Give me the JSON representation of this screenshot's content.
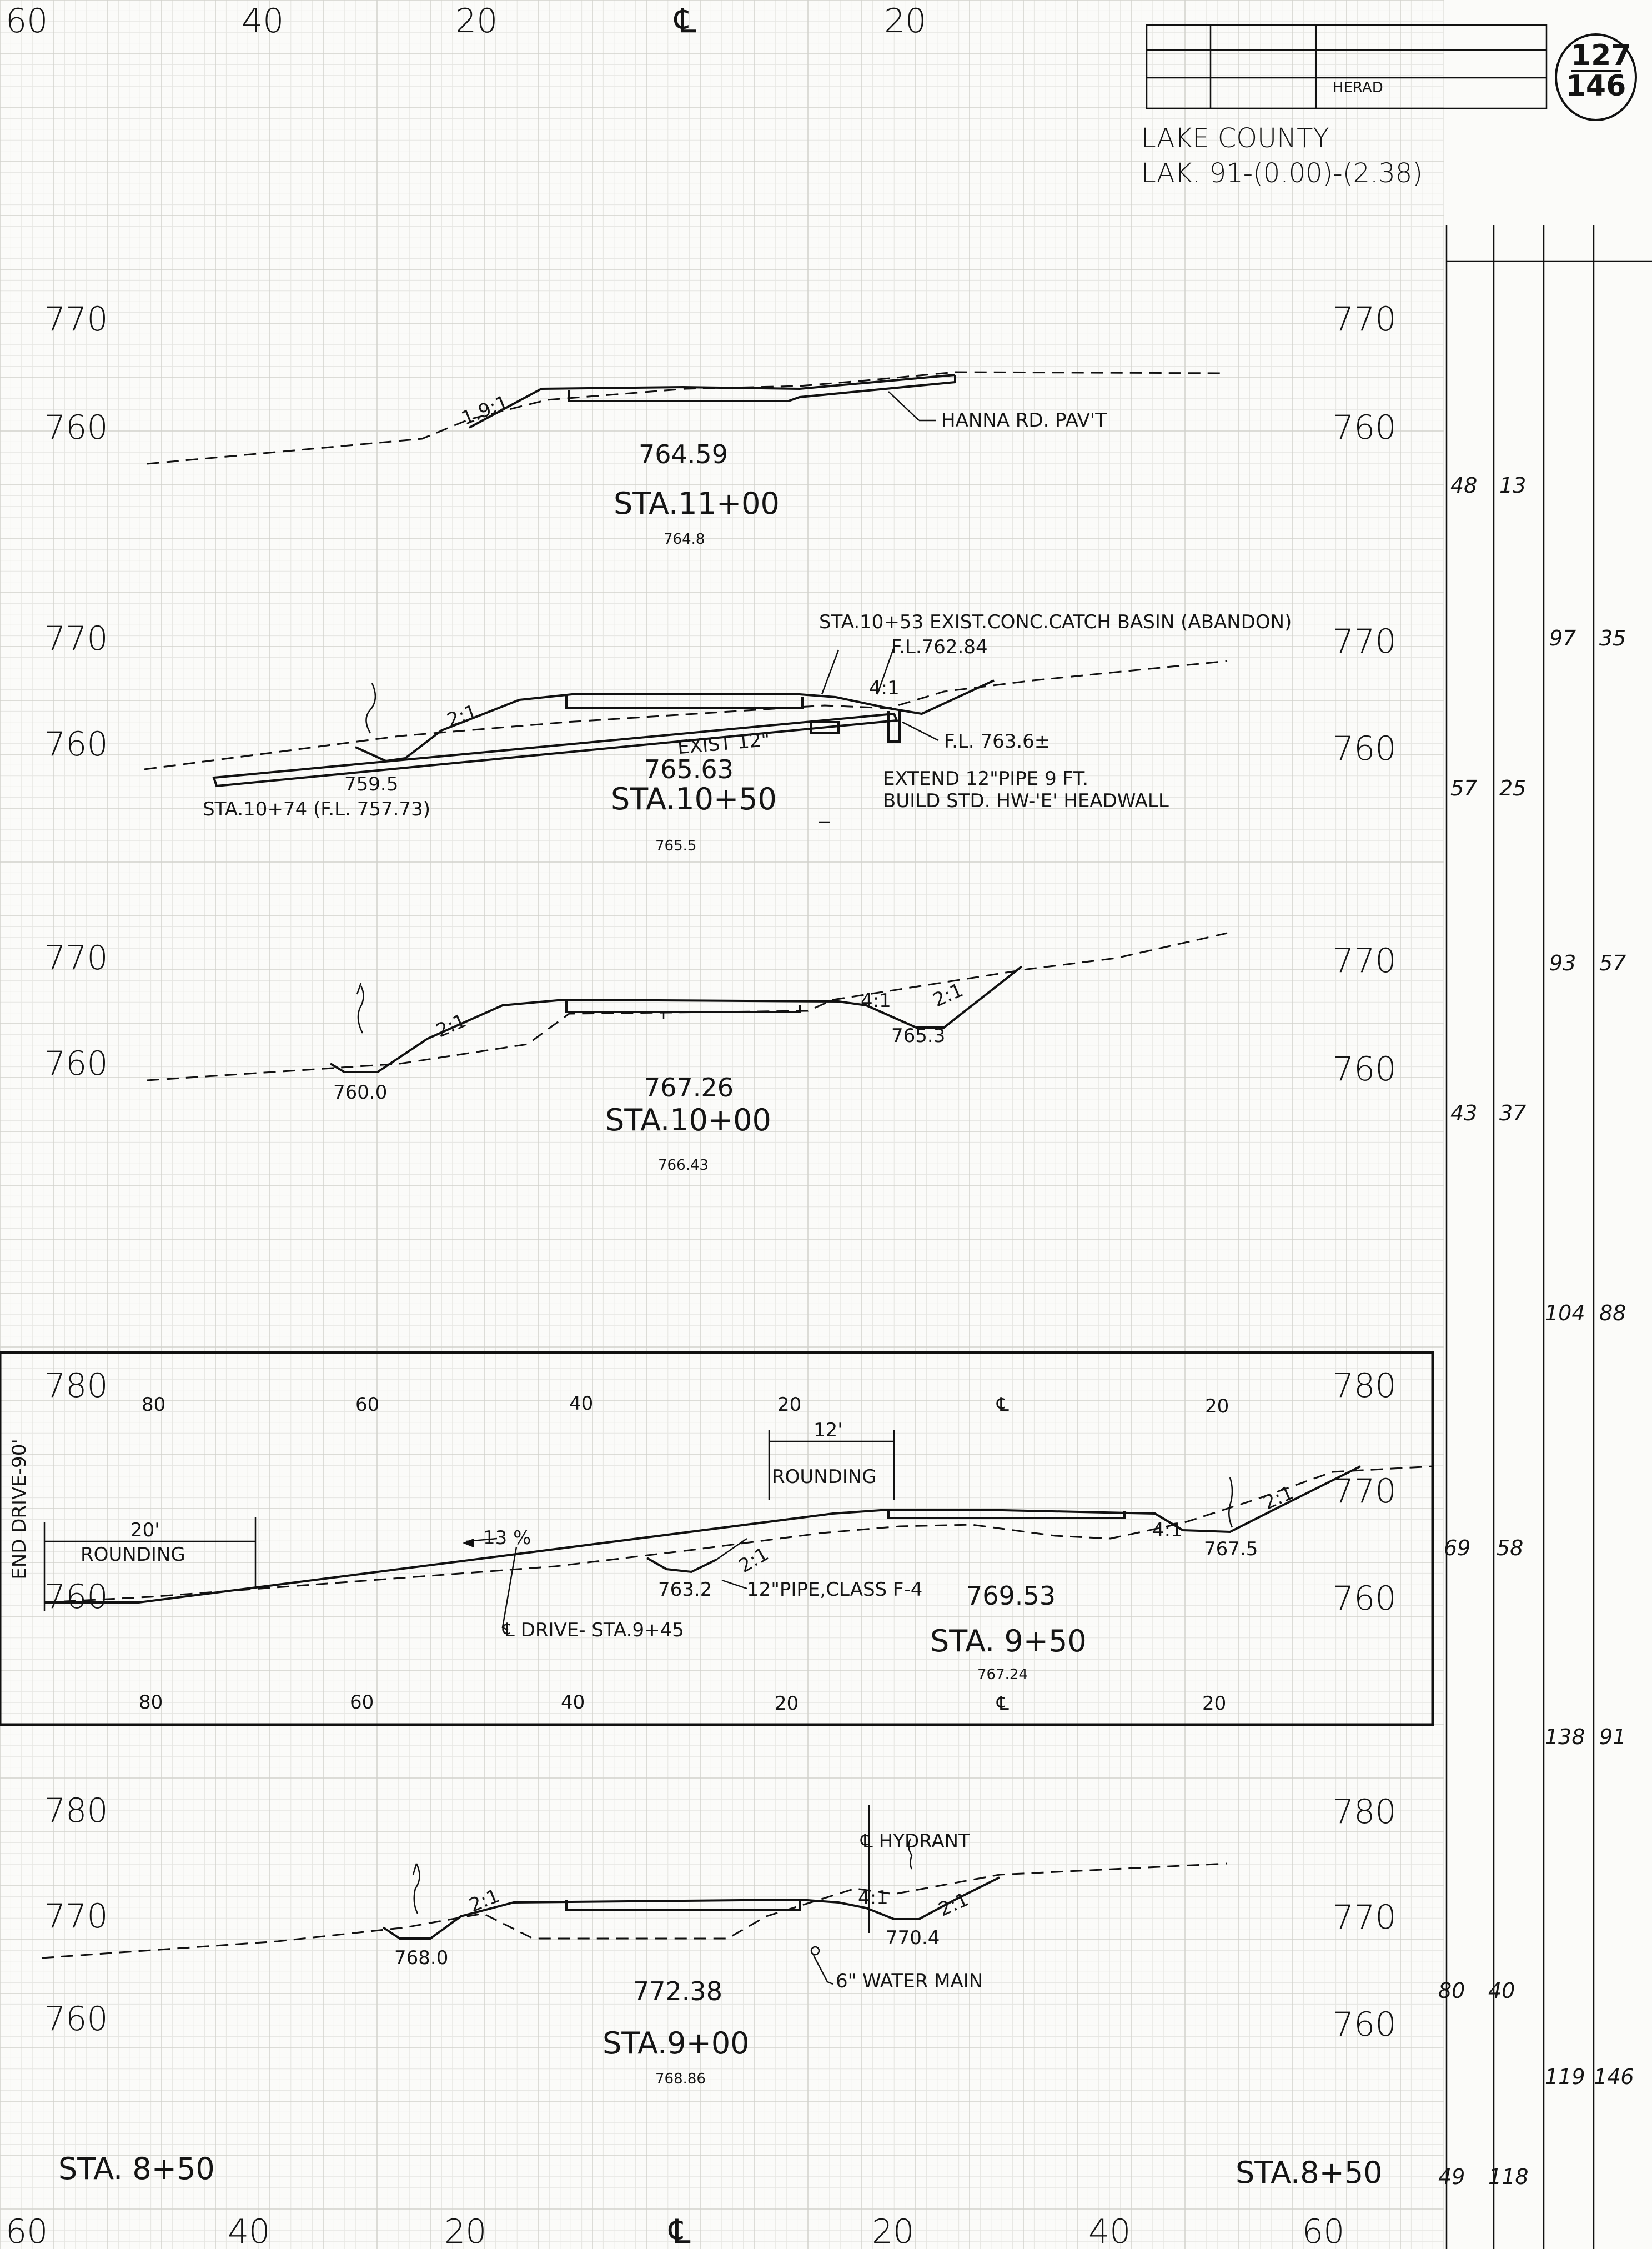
{
  "header": {
    "county": "LAKE COUNTY",
    "project": "LAK. 91-(0.00)-(2.38)",
    "sheet_number": "127",
    "sheet_total": "146",
    "title_block_text": "HERAD"
  },
  "offset_scale": {
    "top": [
      "60",
      "40",
      "20",
      "℄",
      "20"
    ],
    "bottom": [
      "60",
      "40",
      "20",
      "℄",
      "20",
      "40",
      "60"
    ]
  },
  "sections": [
    {
      "station": "STA.11+00",
      "grade_elev": "764.59",
      "ground_elev": "764.8",
      "elev_upper": "770",
      "elev_lower": "760",
      "notes": [
        "HANNA RD. PAV'T",
        "1.9:1"
      ],
      "area": [
        "48",
        "13"
      ]
    },
    {
      "station": "STA.10+50",
      "grade_elev": "765.63",
      "ground_elev": "765.5",
      "elev_upper": "770",
      "elev_lower": "760",
      "notes": [
        "STA.10+53 EXIST.CONC.CATCH BASIN (ABANDON)",
        "F.L.762.84",
        "F.L. 763.6±",
        "EXIST 12\"",
        "EXTEND 12\"PIPE 9 FT.",
        "BUILD STD. HW-'E' HEADWALL",
        "STA.10+74 (F.L. 757.73)",
        "759.5",
        "2:1",
        "4:1"
      ],
      "area_above": [
        "97",
        "35"
      ],
      "area": [
        "57",
        "25"
      ]
    },
    {
      "station": "STA.10+00",
      "grade_elev": "767.26",
      "ground_elev": "766.43",
      "elev_upper": "770",
      "elev_lower": "760",
      "notes": [
        "760.0",
        "765.3",
        "2:1",
        "4:1",
        "2:1"
      ],
      "area_above": [
        "93",
        "57"
      ],
      "area": [
        "43",
        "37"
      ]
    },
    {
      "station": "STA. 9+50",
      "grade_elev": "769.53",
      "ground_elev": "767.24",
      "elev_upper": "780",
      "elev_mid": "770",
      "elev_lower": "760",
      "inset_scale": [
        "80",
        "60",
        "40",
        "20",
        "℄",
        "20"
      ],
      "notes": [
        "END DRIVE-90'",
        "20'",
        "ROUNDING",
        "12'",
        "ROUNDING",
        "13 %",
        "℄ DRIVE- STA.9+45",
        "763.2",
        "12\"PIPE,CLASS F-4",
        "767.5",
        "2:1",
        "4:1",
        "2:1"
      ],
      "area_above": [
        "104",
        "88"
      ],
      "area": [
        "69",
        "58"
      ]
    },
    {
      "station": "STA.9+00",
      "grade_elev": "772.38",
      "ground_elev": "768.86",
      "elev_upper": "780",
      "elev_mid": "770",
      "elev_lower": "760",
      "notes": [
        "℄ HYDRANT",
        "6\" WATER MAIN",
        "768.0",
        "770.4",
        "2:1",
        "4:1",
        "2:1"
      ],
      "area_above": [
        "138",
        "91"
      ],
      "area": [
        "80",
        "40"
      ]
    }
  ],
  "bottom_stations": {
    "left": "STA. 8+50",
    "right": "STA.8+50"
  },
  "extra_columns": [
    [
      "119",
      "146"
    ],
    [
      "49",
      "118"
    ]
  ]
}
